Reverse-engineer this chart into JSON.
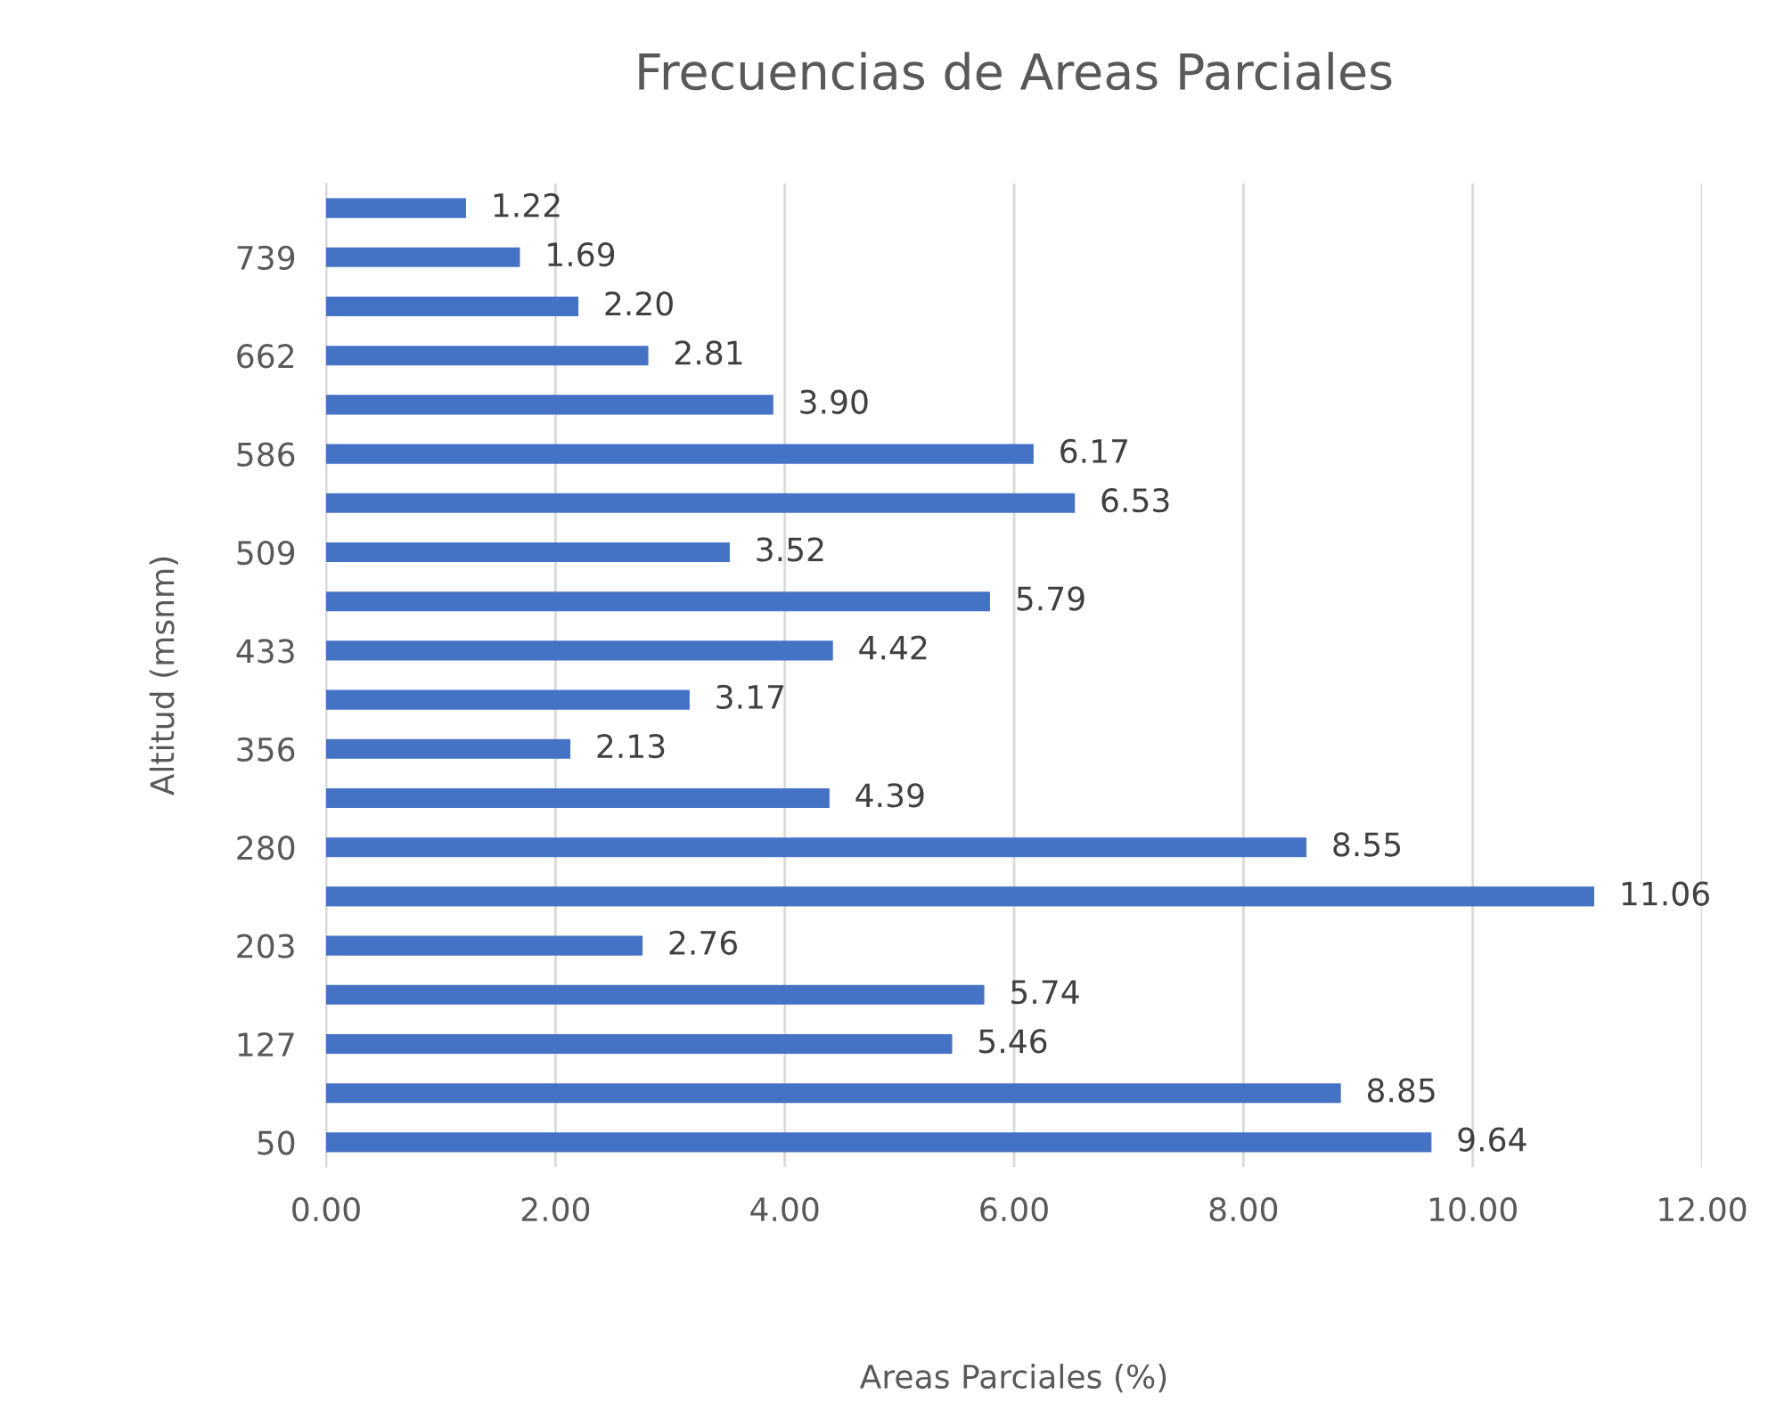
{
  "chart_data": {
    "type": "bar",
    "orientation": "horizontal",
    "title": "Frecuencias de Areas Parciales",
    "xlabel": "Areas Parciales (%)",
    "ylabel": "Altitud (msnm)",
    "categories": [
      null,
      "739",
      null,
      "662",
      null,
      "586",
      null,
      "509",
      null,
      "433",
      null,
      "356",
      null,
      "280",
      null,
      "203",
      null,
      "127",
      null,
      "50"
    ],
    "values": [
      1.22,
      1.69,
      2.2,
      2.81,
      3.9,
      6.17,
      6.53,
      3.52,
      5.79,
      4.42,
      3.17,
      2.13,
      4.39,
      8.55,
      11.06,
      2.76,
      5.74,
      5.46,
      8.85,
      9.64
    ],
    "value_labels": [
      "1.22",
      "1.69",
      "2.20",
      "2.81",
      "3.90",
      "6.17",
      "6.53",
      "3.52",
      "5.79",
      "4.42",
      "3.17",
      "2.13",
      "4.39",
      "8.55",
      "11.06",
      "2.76",
      "5.74",
      "5.46",
      "8.85",
      "9.64"
    ],
    "color": "#4472c4",
    "xlim": [
      0,
      12
    ],
    "xticks": [
      {
        "value": 0,
        "label": "0.00"
      },
      {
        "value": 2,
        "label": "2.00"
      },
      {
        "value": 4,
        "label": "4.00"
      },
      {
        "value": 6,
        "label": "6.00"
      },
      {
        "value": 8,
        "label": "8.00"
      },
      {
        "value": 10,
        "label": "10.00"
      },
      {
        "value": 12,
        "label": "12.00"
      }
    ],
    "grid": "x",
    "legend": false
  }
}
